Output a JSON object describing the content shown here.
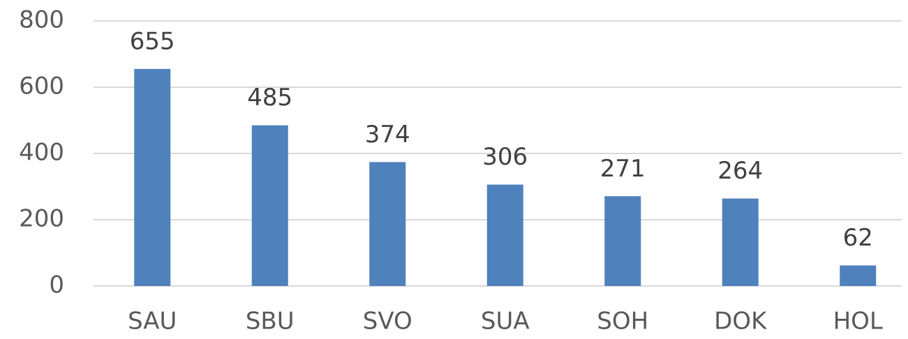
{
  "chart_data": {
    "type": "bar",
    "categories": [
      "SAU",
      "SBU",
      "SVO",
      "SUA",
      "SOH",
      "DOK",
      "HOL"
    ],
    "values": [
      655,
      485,
      374,
      306,
      271,
      264,
      62
    ],
    "color": "#4f81bd",
    "ylim": [
      0,
      800
    ],
    "yticks": [
      0,
      200,
      400,
      600,
      800
    ],
    "grid": true
  }
}
